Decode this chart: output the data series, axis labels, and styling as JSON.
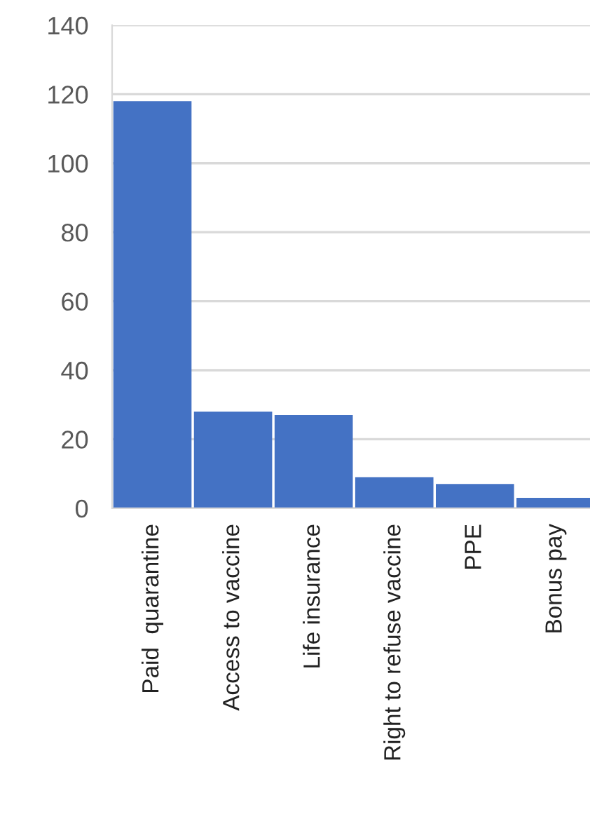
{
  "chart_data": {
    "type": "bar",
    "categories": [
      "Paid  quarantine",
      "Access to vaccine",
      "Life insurance",
      "Right to refuse vaccine",
      "PPE",
      "Bonus pay"
    ],
    "values": [
      118,
      28,
      27,
      9,
      7,
      3
    ],
    "color": "#4472c4",
    "ylim": [
      0,
      140
    ],
    "yticks": [
      0,
      20,
      40,
      60,
      80,
      100,
      120,
      140
    ],
    "grid": "y"
  }
}
